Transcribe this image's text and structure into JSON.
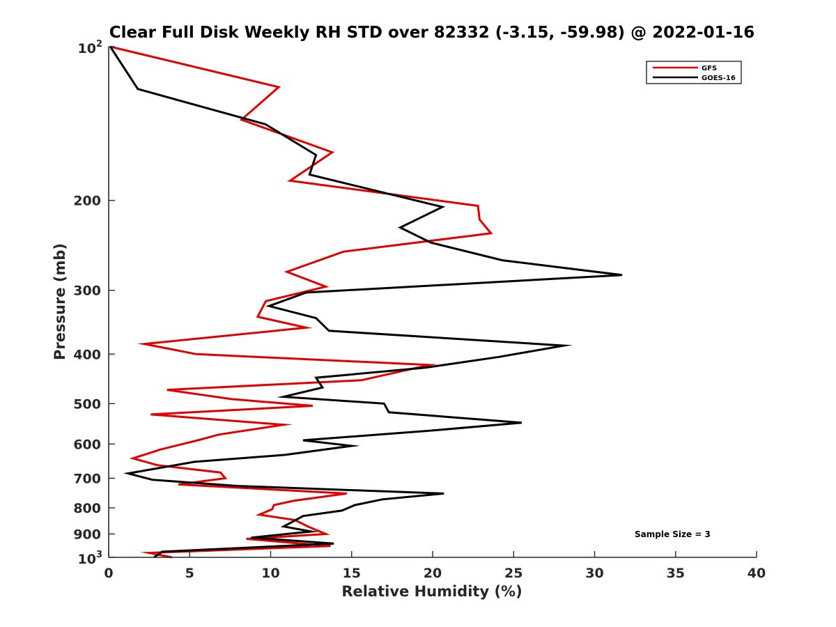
{
  "chart_data": {
    "type": "line",
    "title": "Clear Full Disk Weekly RH STD over 82332 (-3.15, -59.98) @ 2022-01-16",
    "xlabel": "Relative Humidity (%)",
    "ylabel": "Pressure (mb)",
    "xlim": [
      0,
      40
    ],
    "ylim": [
      100,
      1000
    ],
    "y_scale": "log",
    "y_reversed": true,
    "x_ticks": [
      "0",
      "5",
      "10",
      "15",
      "20",
      "25",
      "30",
      "35",
      "40"
    ],
    "y_ticks": [
      {
        "value": 100,
        "base": "10",
        "exp": "2"
      },
      {
        "value": 200,
        "label": "200"
      },
      {
        "value": 300,
        "label": "300"
      },
      {
        "value": 400,
        "label": "400"
      },
      {
        "value": 500,
        "label": "500"
      },
      {
        "value": 600,
        "label": "600"
      },
      {
        "value": 700,
        "label": "700"
      },
      {
        "value": 800,
        "label": "800"
      },
      {
        "value": 900,
        "label": "900"
      },
      {
        "value": 1000,
        "base": "10",
        "exp": "3"
      }
    ],
    "legend_position": "top-right",
    "grid": false,
    "annotation": "Sample Size = 3",
    "series": [
      {
        "name": "GFS",
        "color": "#e00000",
        "x": [
          0.1,
          10.5,
          8.2,
          13.8,
          11.2,
          22.8,
          22.9,
          23.6,
          14.5,
          11.0,
          13.4,
          9.7,
          9.2,
          12.2,
          2.2,
          5.4,
          19.8,
          15.6,
          3.6,
          7.6,
          12.6,
          2.6,
          10.8,
          6.8,
          5.5,
          3.2,
          1.5,
          3.0,
          6.9,
          7.2,
          4.3,
          14.7,
          11.4,
          10.2,
          10.1,
          9.3,
          11.5,
          12.3,
          13.4,
          8.5,
          13.7,
          2.5,
          3.9
        ],
        "y": [
          100,
          120,
          139,
          161,
          183,
          205,
          218,
          232,
          252,
          276,
          295,
          315,
          338,
          355,
          382,
          400,
          420,
          450,
          470,
          490,
          505,
          525,
          550,
          575,
          590,
          615,
          640,
          660,
          682,
          700,
          720,
          750,
          775,
          790,
          805,
          825,
          845,
          870,
          900,
          920,
          950,
          980,
          1000
        ]
      },
      {
        "name": "GOES-16",
        "color": "#000000",
        "x": [
          0.1,
          1.8,
          9.7,
          12.8,
          12.4,
          20.6,
          18.0,
          19.9,
          24.3,
          31.7,
          12.2,
          9.9,
          12.8,
          13.6,
          28.1,
          24.1,
          19.6,
          12.8,
          13.2,
          10.8,
          17.0,
          17.3,
          25.5,
          19.8,
          12.0,
          15.0,
          10.9,
          5.3,
          1.2,
          2.7,
          8.0,
          20.7,
          16.9,
          15.2,
          14.4,
          12.0,
          11.4,
          10.8,
          12.5,
          8.8,
          13.9,
          3.3,
          2.8
        ],
        "y": [
          100,
          121,
          142,
          163,
          178,
          206,
          226,
          242,
          262,
          280,
          303,
          322,
          340,
          360,
          385,
          405,
          425,
          445,
          465,
          485,
          500,
          520,
          545,
          565,
          590,
          605,
          630,
          650,
          685,
          705,
          725,
          750,
          770,
          790,
          810,
          830,
          850,
          870,
          890,
          915,
          940,
          975,
          1000
        ]
      }
    ]
  }
}
